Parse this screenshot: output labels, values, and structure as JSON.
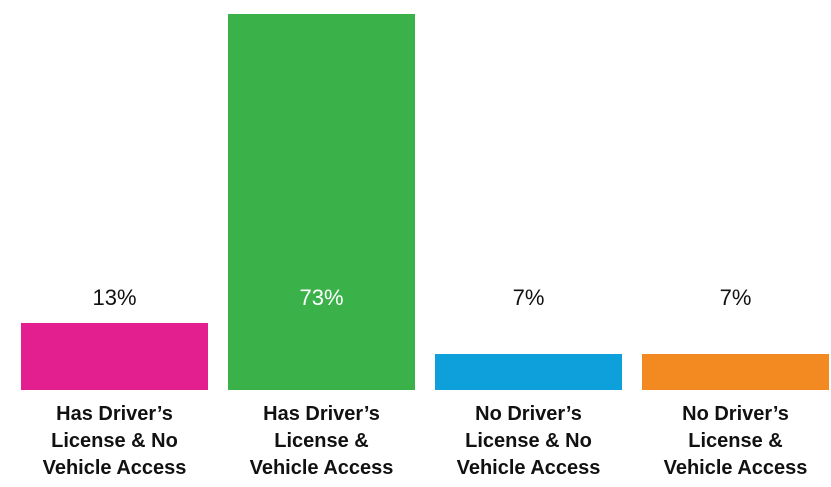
{
  "chart_data": {
    "type": "bar",
    "categories": [
      "Has Driver’s License & No Vehicle Access",
      "Has Driver’s License & Vehicle Access",
      "No Driver’s License & No Vehicle Access",
      "No Driver’s License & Vehicle Access"
    ],
    "values": [
      13,
      73,
      7,
      7
    ],
    "value_labels": [
      "13%",
      "73%",
      "7%",
      "7%"
    ],
    "colors": [
      "#e31e8f",
      "#3bb14a",
      "#0da0db",
      "#f28a21"
    ]
  }
}
